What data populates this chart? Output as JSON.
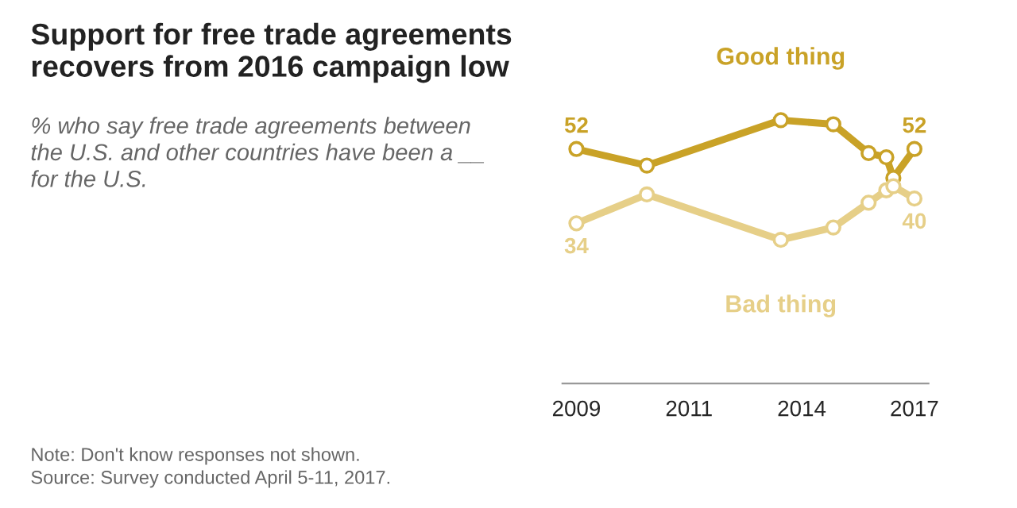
{
  "chart_data": {
    "type": "line",
    "title": "Support for free trade agreements\nrecovers from 2016 campaign low",
    "subtitle": "% who say free trade agreements between\nthe U.S. and other countries have been a __\nfor the U.S.",
    "x": [
      "2009-04",
      "2010-12",
      "2014-02",
      "2015-05",
      "2016-03",
      "2016-08",
      "2016-10",
      "2017-04"
    ],
    "series": [
      {
        "name": "Good thing",
        "color": "#c9a227",
        "values": [
          52,
          48,
          59,
          58,
          51,
          50,
          45,
          52
        ],
        "value_labels": [
          "52",
          null,
          null,
          null,
          null,
          null,
          null,
          "52"
        ]
      },
      {
        "name": "Bad thing",
        "color": "#e6cf88",
        "values": [
          34,
          41,
          30,
          33,
          39,
          42,
          43,
          40
        ],
        "value_labels": [
          "34",
          null,
          null,
          null,
          null,
          null,
          null,
          "40"
        ]
      }
    ],
    "xlim": [
      "2008-12",
      "2017-08"
    ],
    "xticks": [
      {
        "value": "2009-04",
        "label": "2009"
      },
      {
        "value": "2011-12",
        "label": "2011"
      },
      {
        "value": "2014-08",
        "label": "2014"
      },
      {
        "value": "2017-04",
        "label": "2017"
      }
    ],
    "tick_labels": "x",
    "grid": false,
    "marker": "circle",
    "line_style": "solid",
    "annotations": [
      "Note: Don't know responses not shown.\nSource: Survey conducted April 5-11, 2017."
    ]
  }
}
